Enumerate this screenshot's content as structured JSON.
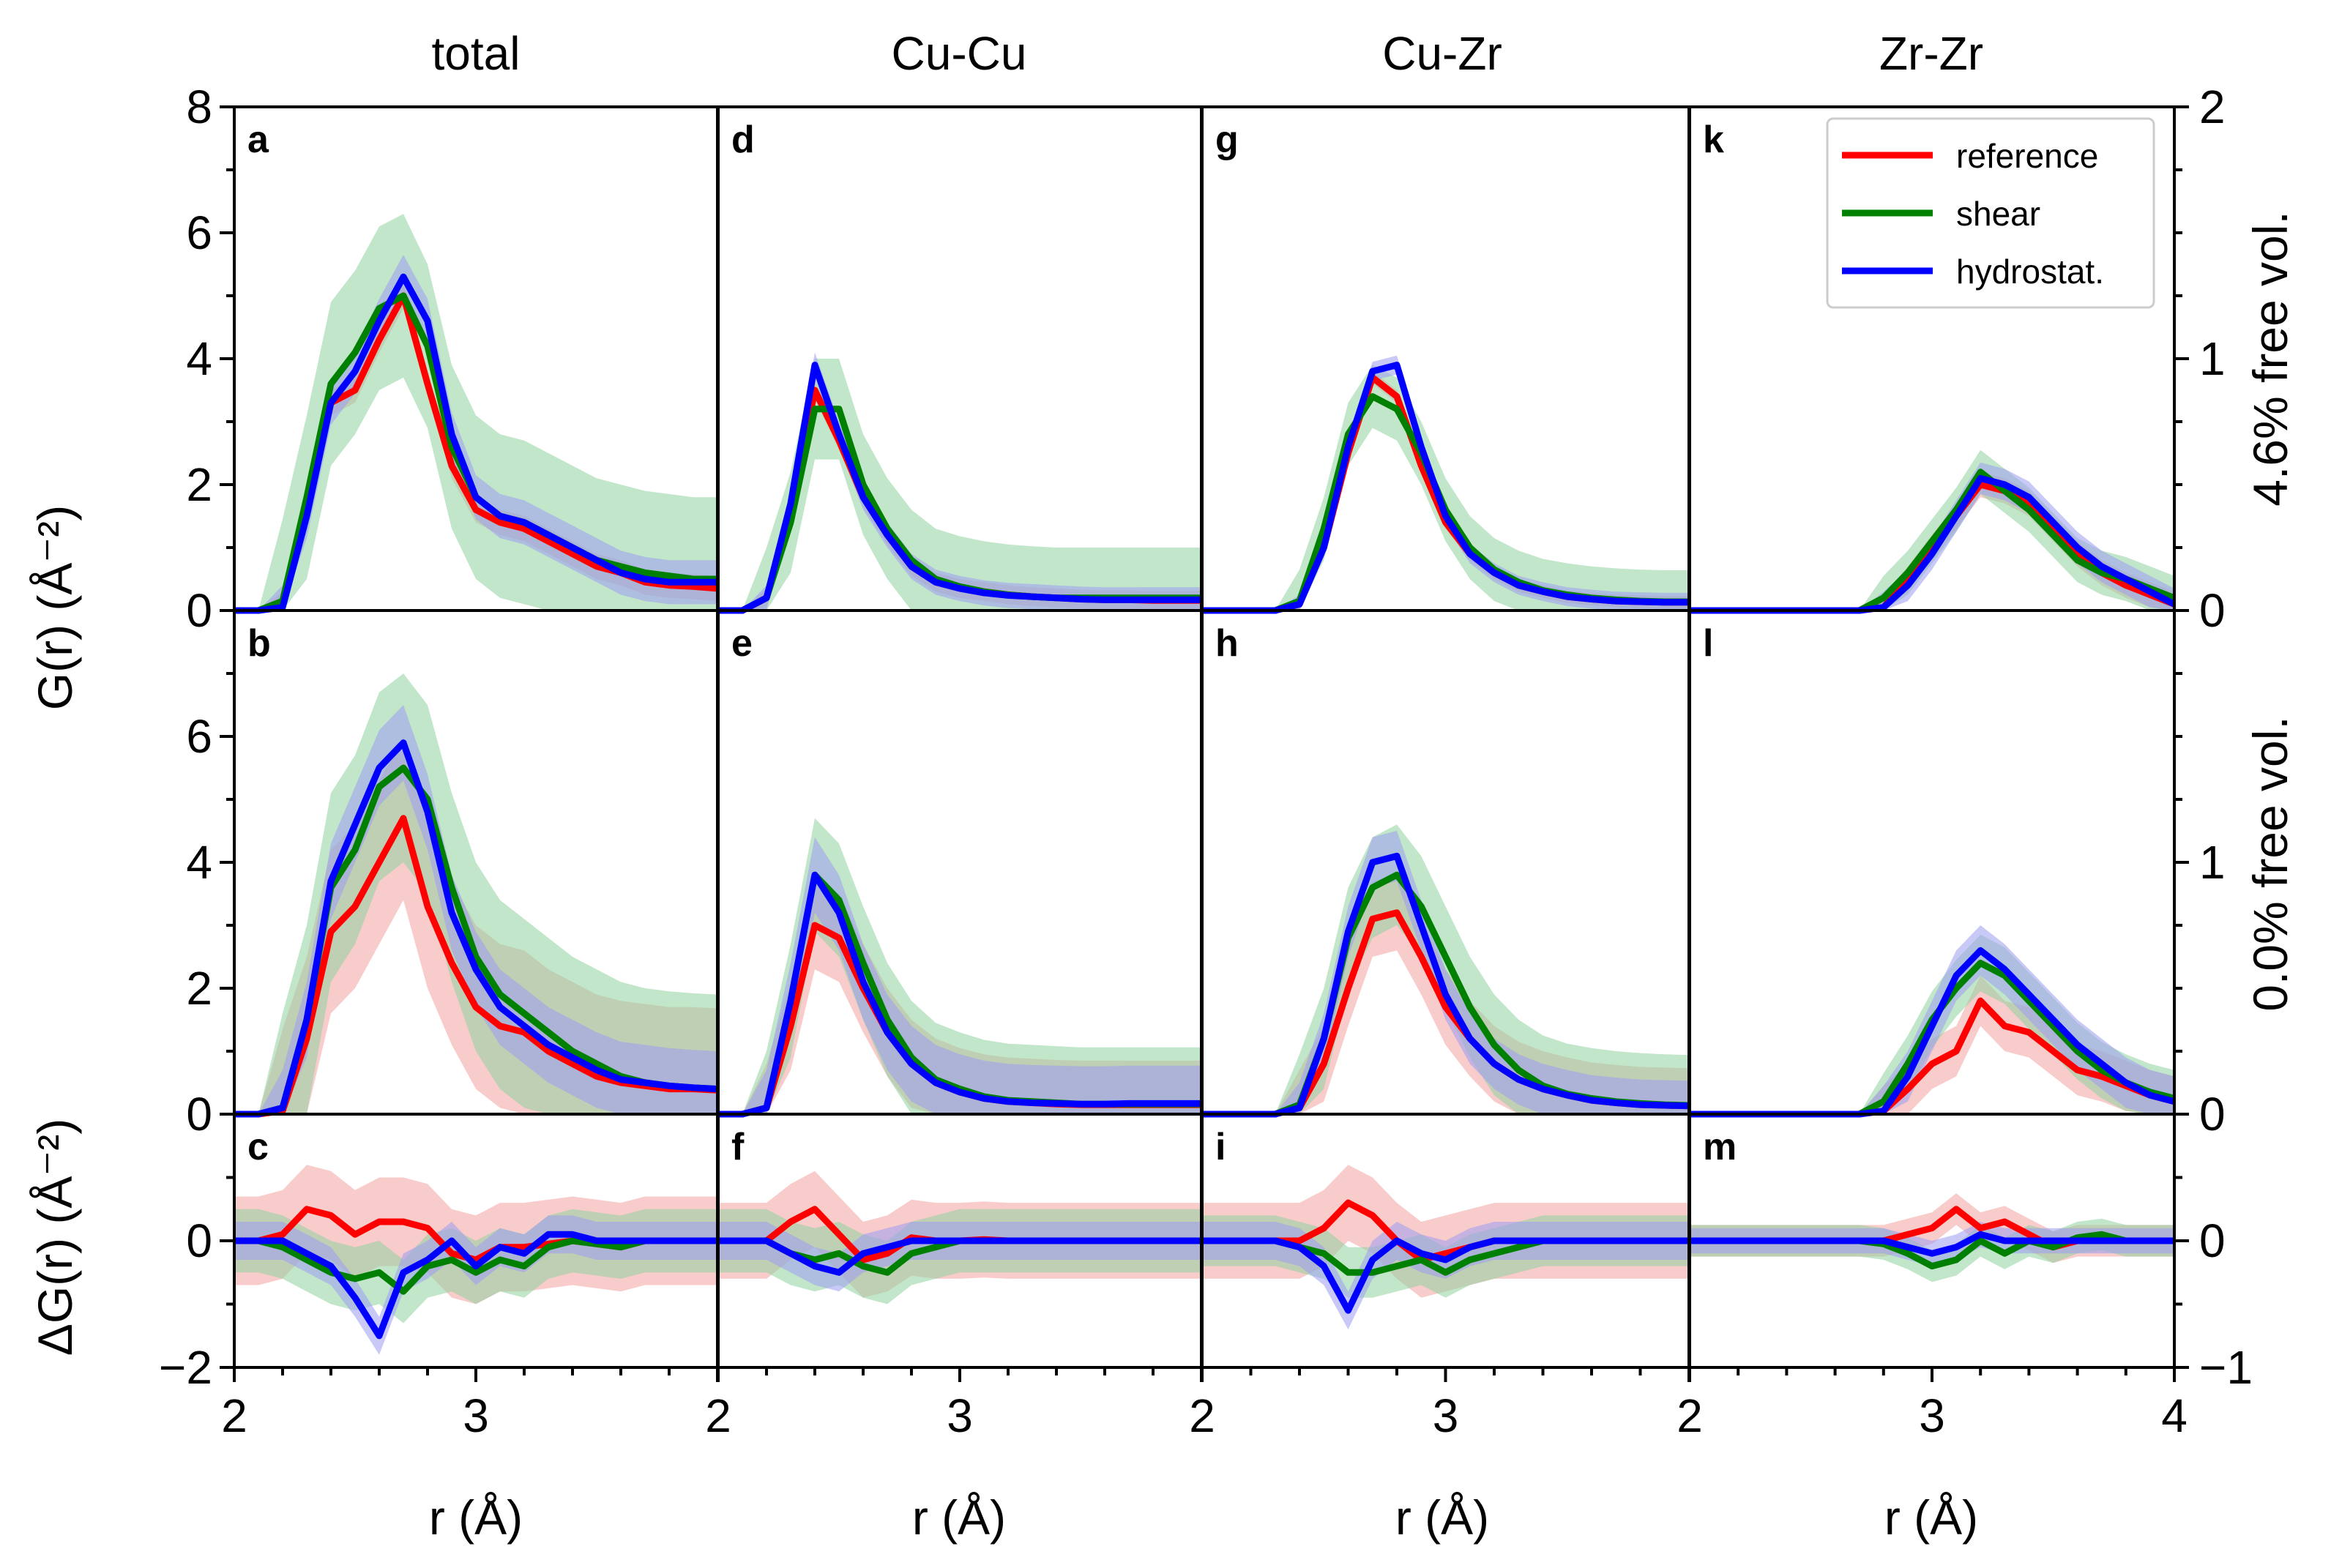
{
  "chart_data": {
    "type": "line",
    "description_title": "",
    "columns": [
      "total",
      "Cu-Cu",
      "Cu-Zr",
      "Zr-Zr"
    ],
    "xlabel": "r (Å)",
    "ylabel_top": "G(r) (Å⁻²)",
    "ylabel_bottom": "ΔG(r) (Å⁻²)",
    "right_labels": [
      "4.6% free vol.",
      "0.0% free vol."
    ],
    "xlim": [
      2,
      4
    ],
    "xticks": [
      "2",
      "3",
      "4"
    ],
    "rows": [
      {
        "name": "4.6% free vol.",
        "ylim": [
          0,
          8
        ],
        "yticks": [
          "0",
          "2",
          "4",
          "6",
          "8"
        ],
        "right_ylim": [
          0,
          2
        ],
        "right_yticks": [
          "0",
          "1",
          "2"
        ]
      },
      {
        "name": "0.0% free vol.",
        "ylim": [
          0,
          8
        ],
        "yticks": [
          "0",
          "2",
          "4",
          "6"
        ],
        "right_ylim": [
          0,
          2
        ],
        "right_yticks": [
          "0",
          "1"
        ]
      },
      {
        "name": "difference",
        "ylim": [
          -2,
          2
        ],
        "yticks": [
          "−2",
          "0"
        ],
        "right_ylim": [
          -1,
          1
        ],
        "right_yticks": [
          "−1",
          "0"
        ]
      }
    ],
    "panel_labels": [
      [
        "a",
        "b",
        "c"
      ],
      [
        "d",
        "e",
        "f"
      ],
      [
        "g",
        "h",
        "i"
      ],
      [
        "k",
        "l",
        "m"
      ]
    ],
    "legend": {
      "position": "top-right of panel k",
      "entries": [
        "reference",
        "shear",
        "hydrostat."
      ]
    },
    "colors": {
      "reference": "#ff0000",
      "shear": "#008000",
      "hydrostat.": "#0000ff",
      "reference_band": "#f4a3a3",
      "shear_band": "#8fd19e",
      "hydrostat_band": "#9d9df2"
    },
    "x": [
      2.0,
      2.1,
      2.2,
      2.3,
      2.4,
      2.5,
      2.6,
      2.7,
      2.8,
      2.9,
      3.0,
      3.1,
      3.2,
      3.3,
      3.4,
      3.5,
      3.6,
      3.7,
      3.8,
      3.9,
      4.0
    ],
    "panels": [
      {
        "id": "a",
        "col": 0,
        "row": 0,
        "series": {
          "reference": [
            0,
            0,
            0.1,
            1.6,
            3.3,
            3.5,
            4.3,
            5.0,
            3.6,
            2.3,
            1.6,
            1.4,
            1.3,
            1.1,
            0.9,
            0.7,
            0.6,
            0.45,
            0.4,
            0.38,
            0.35
          ],
          "shear": [
            0,
            0,
            0.15,
            1.8,
            3.6,
            4.1,
            4.8,
            5.0,
            4.2,
            2.6,
            1.8,
            1.5,
            1.4,
            1.2,
            1.0,
            0.8,
            0.7,
            0.6,
            0.55,
            0.5,
            0.5
          ],
          "hydrostat.": [
            0,
            0,
            0.05,
            1.5,
            3.3,
            3.8,
            4.6,
            5.3,
            4.6,
            2.8,
            1.8,
            1.5,
            1.4,
            1.2,
            1.0,
            0.8,
            0.6,
            0.5,
            0.45,
            0.45,
            0.45
          ]
        },
        "band": [
          0.2,
          1.3,
          0.35
        ]
      },
      {
        "id": "d",
        "col": 1,
        "row": 0,
        "series": {
          "reference": [
            0,
            0,
            0.2,
            1.5,
            3.5,
            2.7,
            1.8,
            1.2,
            0.7,
            0.45,
            0.35,
            0.3,
            0.25,
            0.22,
            0.2,
            0.18,
            0.17,
            0.17,
            0.16,
            0.16,
            0.16
          ],
          "shear": [
            0,
            0,
            0.2,
            1.4,
            3.2,
            3.2,
            2.0,
            1.3,
            0.8,
            0.5,
            0.38,
            0.3,
            0.25,
            0.22,
            0.2,
            0.2,
            0.2,
            0.2,
            0.2,
            0.2,
            0.2
          ],
          "hydrostat.": [
            0,
            0,
            0.2,
            1.7,
            3.9,
            2.8,
            1.8,
            1.2,
            0.7,
            0.45,
            0.35,
            0.28,
            0.24,
            0.22,
            0.2,
            0.18,
            0.17,
            0.17,
            0.17,
            0.17,
            0.17
          ]
        },
        "band": [
          0.15,
          0.8,
          0.2
        ]
      },
      {
        "id": "g",
        "col": 2,
        "row": 0,
        "series": {
          "reference": [
            0,
            0,
            0,
            0,
            0.1,
            1.0,
            2.5,
            3.7,
            3.4,
            2.3,
            1.4,
            0.9,
            0.6,
            0.4,
            0.3,
            0.22,
            0.18,
            0.15,
            0.14,
            0.13,
            0.13
          ],
          "shear": [
            0,
            0,
            0,
            0,
            0.15,
            1.3,
            2.8,
            3.4,
            3.2,
            2.5,
            1.6,
            1.0,
            0.65,
            0.45,
            0.32,
            0.25,
            0.2,
            0.17,
            0.15,
            0.14,
            0.14
          ],
          "hydrostat.": [
            0,
            0,
            0,
            0,
            0.1,
            1.0,
            2.6,
            3.8,
            3.9,
            2.6,
            1.5,
            0.9,
            0.6,
            0.4,
            0.3,
            0.22,
            0.18,
            0.15,
            0.14,
            0.13,
            0.13
          ]
        },
        "band": [
          0.1,
          0.5,
          0.15
        ]
      },
      {
        "id": "k",
        "col": 3,
        "row": 0,
        "series": {
          "reference": [
            0,
            0,
            0,
            0,
            0,
            0,
            0,
            0,
            0.05,
            0.5,
            1.0,
            1.5,
            2.0,
            1.9,
            1.7,
            1.3,
            0.9,
            0.6,
            0.4,
            0.25,
            0.1
          ],
          "shear": [
            0,
            0,
            0,
            0,
            0,
            0,
            0,
            0,
            0.2,
            0.6,
            1.1,
            1.6,
            2.2,
            1.9,
            1.6,
            1.2,
            0.8,
            0.6,
            0.5,
            0.35,
            0.2
          ],
          "hydrostat.": [
            0,
            0,
            0,
            0,
            0,
            0,
            0,
            0,
            0.05,
            0.4,
            0.9,
            1.5,
            2.1,
            2.0,
            1.8,
            1.4,
            1.0,
            0.7,
            0.5,
            0.3,
            0.1
          ]
        },
        "band": [
          0.2,
          0.35,
          0.25
        ]
      },
      {
        "id": "b",
        "col": 0,
        "row": 1,
        "series": {
          "reference": [
            0,
            0,
            0.05,
            1.2,
            2.9,
            3.3,
            4.0,
            4.7,
            3.3,
            2.4,
            1.7,
            1.4,
            1.3,
            1.0,
            0.8,
            0.6,
            0.5,
            0.45,
            0.4,
            0.4,
            0.38
          ],
          "shear": [
            0,
            0,
            0.1,
            1.5,
            3.6,
            4.2,
            5.2,
            5.5,
            5.0,
            3.6,
            2.5,
            1.9,
            1.6,
            1.3,
            1.0,
            0.8,
            0.6,
            0.5,
            0.45,
            0.42,
            0.4
          ],
          "hydrostat.": [
            0,
            0,
            0.1,
            1.5,
            3.7,
            4.6,
            5.5,
            5.9,
            4.8,
            3.2,
            2.3,
            1.7,
            1.4,
            1.1,
            0.9,
            0.7,
            0.55,
            0.5,
            0.45,
            0.42,
            0.4
          ]
        },
        "band": [
          1.3,
          1.5,
          0.6
        ]
      },
      {
        "id": "e",
        "col": 1,
        "row": 1,
        "series": {
          "reference": [
            0,
            0,
            0.1,
            1.4,
            3.0,
            2.8,
            2.0,
            1.3,
            0.8,
            0.5,
            0.35,
            0.25,
            0.2,
            0.18,
            0.16,
            0.15,
            0.15,
            0.15,
            0.15,
            0.15,
            0.15
          ],
          "shear": [
            0,
            0,
            0.1,
            1.8,
            3.8,
            3.4,
            2.4,
            1.5,
            0.9,
            0.55,
            0.4,
            0.28,
            0.22,
            0.2,
            0.18,
            0.16,
            0.16,
            0.16,
            0.16,
            0.16,
            0.16
          ],
          "hydrostat.": [
            0,
            0,
            0.1,
            1.8,
            3.8,
            3.2,
            2.1,
            1.3,
            0.8,
            0.5,
            0.35,
            0.25,
            0.2,
            0.18,
            0.17,
            0.16,
            0.16,
            0.17,
            0.17,
            0.17,
            0.17
          ]
        },
        "band": [
          0.7,
          0.9,
          0.6
        ]
      },
      {
        "id": "h",
        "col": 2,
        "row": 1,
        "series": {
          "reference": [
            0,
            0,
            0,
            0,
            0.1,
            0.8,
            2.0,
            3.1,
            3.2,
            2.5,
            1.7,
            1.2,
            0.8,
            0.55,
            0.4,
            0.3,
            0.22,
            0.18,
            0.15,
            0.14,
            0.13
          ],
          "shear": [
            0,
            0,
            0,
            0,
            0.15,
            1.2,
            2.8,
            3.6,
            3.8,
            3.3,
            2.5,
            1.7,
            1.1,
            0.7,
            0.45,
            0.32,
            0.25,
            0.2,
            0.17,
            0.15,
            0.14
          ],
          "hydrostat.": [
            0,
            0,
            0,
            0,
            0.1,
            1.2,
            2.9,
            4.0,
            4.1,
            3.0,
            1.9,
            1.2,
            0.8,
            0.55,
            0.4,
            0.3,
            0.22,
            0.18,
            0.15,
            0.14,
            0.13
          ]
        },
        "band": [
          0.6,
          0.8,
          0.4
        ]
      },
      {
        "id": "l",
        "col": 3,
        "row": 1,
        "series": {
          "reference": [
            0,
            0,
            0,
            0,
            0,
            0,
            0,
            0,
            0.05,
            0.4,
            0.8,
            1.0,
            1.8,
            1.4,
            1.3,
            1.0,
            0.7,
            0.6,
            0.45,
            0.3,
            0.2
          ],
          "shear": [
            0,
            0,
            0,
            0,
            0,
            0,
            0,
            0,
            0.2,
            0.8,
            1.5,
            2.0,
            2.4,
            2.2,
            1.8,
            1.4,
            1.0,
            0.7,
            0.5,
            0.35,
            0.25
          ],
          "hydrostat.": [
            0,
            0,
            0,
            0,
            0,
            0,
            0,
            0,
            0.05,
            0.6,
            1.4,
            2.2,
            2.6,
            2.3,
            1.9,
            1.5,
            1.1,
            0.8,
            0.5,
            0.3,
            0.2
          ]
        },
        "band": [
          0.4,
          0.45,
          0.4
        ]
      },
      {
        "id": "c",
        "col": 0,
        "row": 2,
        "series": {
          "reference": [
            0,
            0,
            0.1,
            0.5,
            0.4,
            0.1,
            0.3,
            0.3,
            0.2,
            -0.2,
            -0.3,
            -0.1,
            -0.1,
            -0.05,
            0,
            -0.05,
            -0.1,
            0,
            0,
            0,
            0
          ],
          "shear": [
            0,
            0,
            -0.1,
            -0.3,
            -0.5,
            -0.6,
            -0.5,
            -0.8,
            -0.4,
            -0.3,
            -0.5,
            -0.3,
            -0.4,
            -0.1,
            0,
            -0.05,
            -0.1,
            0,
            0,
            0,
            0
          ],
          "hydrostat.": [
            0,
            0,
            0,
            -0.2,
            -0.4,
            -0.9,
            -1.5,
            -0.5,
            -0.3,
            0,
            -0.4,
            -0.1,
            -0.2,
            0.1,
            0.1,
            0,
            0,
            0,
            0,
            0,
            0
          ]
        },
        "band": [
          0.7,
          0.5,
          0.3
        ]
      },
      {
        "id": "f",
        "col": 1,
        "row": 2,
        "series": {
          "reference": [
            0,
            0,
            0,
            0.3,
            0.5,
            0.1,
            -0.3,
            -0.2,
            0.05,
            0,
            0,
            0.02,
            0,
            0,
            0,
            0,
            0,
            0,
            0,
            0,
            0
          ],
          "shear": [
            0,
            0,
            0,
            -0.2,
            -0.3,
            -0.2,
            -0.4,
            -0.5,
            -0.2,
            -0.1,
            0,
            0,
            0,
            0,
            0,
            0,
            0,
            0,
            0,
            0,
            0
          ],
          "hydrostat.": [
            0,
            0,
            0,
            -0.2,
            -0.4,
            -0.5,
            -0.2,
            -0.1,
            0,
            0,
            0,
            0,
            0,
            0,
            0,
            0,
            0,
            0,
            0,
            0,
            0
          ]
        },
        "band": [
          0.6,
          0.5,
          0.3
        ]
      },
      {
        "id": "i",
        "col": 2,
        "row": 2,
        "series": {
          "reference": [
            0,
            0,
            0,
            0,
            0,
            0.2,
            0.6,
            0.4,
            0,
            -0.3,
            -0.2,
            -0.1,
            0,
            0,
            0,
            0,
            0,
            0,
            0,
            0,
            0
          ],
          "shear": [
            0,
            0,
            0,
            0,
            -0.1,
            -0.2,
            -0.5,
            -0.5,
            -0.4,
            -0.3,
            -0.5,
            -0.3,
            -0.2,
            -0.1,
            0,
            0,
            0,
            0,
            0,
            0,
            0
          ],
          "hydrostat.": [
            0,
            0,
            0,
            0,
            -0.1,
            -0.4,
            -1.1,
            -0.3,
            0,
            -0.2,
            -0.3,
            -0.1,
            0,
            0,
            0,
            0,
            0,
            0,
            0,
            0,
            0
          ]
        },
        "band": [
          0.6,
          0.4,
          0.3
        ]
      },
      {
        "id": "m",
        "col": 3,
        "row": 2,
        "series": {
          "reference": [
            0,
            0,
            0,
            0,
            0,
            0,
            0,
            0,
            0,
            0.1,
            0.2,
            0.5,
            0.2,
            0.3,
            0.1,
            -0.1,
            0,
            0,
            0,
            0,
            0
          ],
          "shear": [
            0,
            0,
            0,
            0,
            0,
            0,
            0,
            0,
            -0.05,
            -0.2,
            -0.4,
            -0.3,
            0,
            -0.2,
            0,
            -0.1,
            0.05,
            0.1,
            0,
            0,
            0
          ],
          "hydrostat.": [
            0,
            0,
            0,
            0,
            0,
            0,
            0,
            0,
            0,
            -0.1,
            -0.2,
            -0.1,
            0.1,
            0,
            0,
            0,
            0,
            0,
            0,
            0,
            0
          ]
        },
        "band": [
          0.25,
          0.25,
          0.2
        ]
      }
    ]
  }
}
